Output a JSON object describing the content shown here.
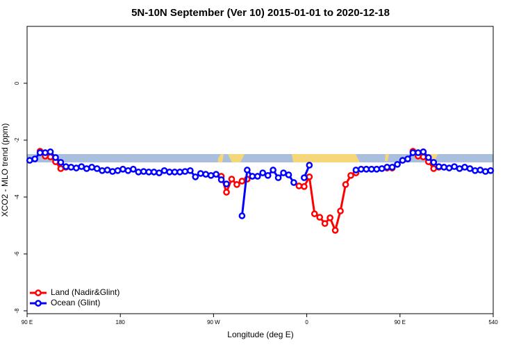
{
  "chart_data": {
    "type": "line",
    "title": "5N-10N September (Ver 10)   2015-01-01 to 2020-12-18",
    "x_label": "Longitude (deg E)",
    "y_label": "XCO2 - MLO trend (ppm)",
    "xlim": [
      90,
      540
    ],
    "xticks": [
      {
        "value": 90,
        "label": "90 E"
      },
      180,
      {
        "value": 270,
        "label": "90 W"
      },
      {
        "value": 360,
        "label": "0"
      },
      {
        "value": 450,
        "label": "90 E"
      },
      540
    ],
    "ylim": [
      -8.1,
      2
    ],
    "yticks": [
      0,
      -2,
      -4,
      -6,
      -8
    ],
    "legend": "bottom-left",
    "x": [
      92.5,
      97.5,
      102.5,
      107.5,
      112.5,
      117.5,
      122.5,
      127.5,
      132.5,
      137.5,
      142.5,
      147.5,
      152.5,
      157.5,
      162.5,
      167.5,
      172.5,
      177.5,
      182.5,
      187.5,
      192.5,
      197.5,
      202.5,
      207.5,
      212.5,
      217.5,
      222.5,
      227.5,
      232.5,
      237.5,
      242.5,
      247.5,
      252.5,
      257.5,
      262.5,
      267.5,
      272.5,
      277.5,
      282.5,
      287.5,
      292.5,
      297.5,
      302.5,
      307.5,
      312.5,
      317.5,
      322.5,
      327.5,
      332.5,
      337.5,
      342.5,
      347.5,
      352.5,
      357.5,
      362.5,
      367.5,
      372.5,
      377.5,
      382.5,
      387.5,
      392.5,
      397.5,
      402.5,
      407.5,
      412.5,
      417.5,
      422.5,
      427.5,
      432.5,
      437.5,
      442.5,
      447.5,
      452.5,
      457.5,
      462.5,
      467.5,
      472.5,
      477.5,
      482.5,
      487.5,
      492.5,
      497.5,
      502.5,
      507.5,
      512.5,
      517.5,
      522.5,
      527.5,
      532.5,
      537.5
    ],
    "series": [
      {
        "name": "Land (Nadir&Glint)",
        "color": "#ff0000",
        "values": [
          null,
          null,
          -2.39,
          -2.56,
          -2.59,
          -2.76,
          -3.0,
          -2.95,
          null,
          null,
          null,
          null,
          null,
          null,
          null,
          null,
          null,
          null,
          null,
          null,
          null,
          null,
          null,
          null,
          null,
          null,
          null,
          null,
          null,
          null,
          null,
          null,
          null,
          null,
          null,
          null,
          null,
          -3.27,
          -3.83,
          -3.37,
          -3.56,
          -3.44,
          -3.37,
          null,
          null,
          null,
          null,
          null,
          null,
          null,
          null,
          null,
          -3.61,
          -3.63,
          -3.29,
          -4.59,
          -4.71,
          -4.93,
          -4.73,
          -5.17,
          -4.49,
          -3.56,
          -3.24,
          -3.15,
          null,
          null,
          null,
          null,
          null,
          -2.98,
          -2.98,
          null,
          null,
          null,
          -2.39,
          -2.56,
          -2.59,
          -2.76,
          -3.0,
          -2.95,
          null,
          null,
          null,
          null,
          null,
          null,
          null,
          null,
          null,
          null
        ]
      },
      {
        "name": "Ocean (Glint)",
        "color": "#0000ff",
        "values": [
          -2.71,
          -2.66,
          -2.44,
          -2.44,
          -2.41,
          -2.61,
          -2.78,
          -2.93,
          -2.95,
          -2.98,
          -2.93,
          -3.0,
          -2.95,
          -3.0,
          -3.07,
          -3.05,
          -3.1,
          -3.07,
          -3.02,
          -3.07,
          -3.02,
          -3.12,
          -3.1,
          -3.12,
          -3.12,
          -3.15,
          -3.07,
          -3.12,
          -3.12,
          -3.12,
          -3.1,
          -3.07,
          -3.29,
          -3.17,
          -3.2,
          -3.24,
          -3.2,
          -3.39,
          -3.54,
          null,
          null,
          -4.66,
          -3.05,
          -3.27,
          -3.27,
          -3.15,
          -3.24,
          -3.05,
          -3.32,
          -3.15,
          -3.22,
          -3.49,
          null,
          -3.32,
          -2.88,
          null,
          null,
          null,
          null,
          null,
          null,
          null,
          null,
          -3.05,
          -3.02,
          -3.02,
          -3.02,
          -3.02,
          -3.0,
          -2.95,
          -2.95,
          -2.85,
          -2.71,
          -2.66,
          -2.44,
          -2.44,
          -2.41,
          -2.61,
          -2.78,
          -2.93,
          -2.95,
          -2.98,
          -2.93,
          -3.0,
          -2.95,
          -3.0,
          -3.07,
          -3.05,
          -3.1,
          -3.07
        ]
      }
    ]
  }
}
